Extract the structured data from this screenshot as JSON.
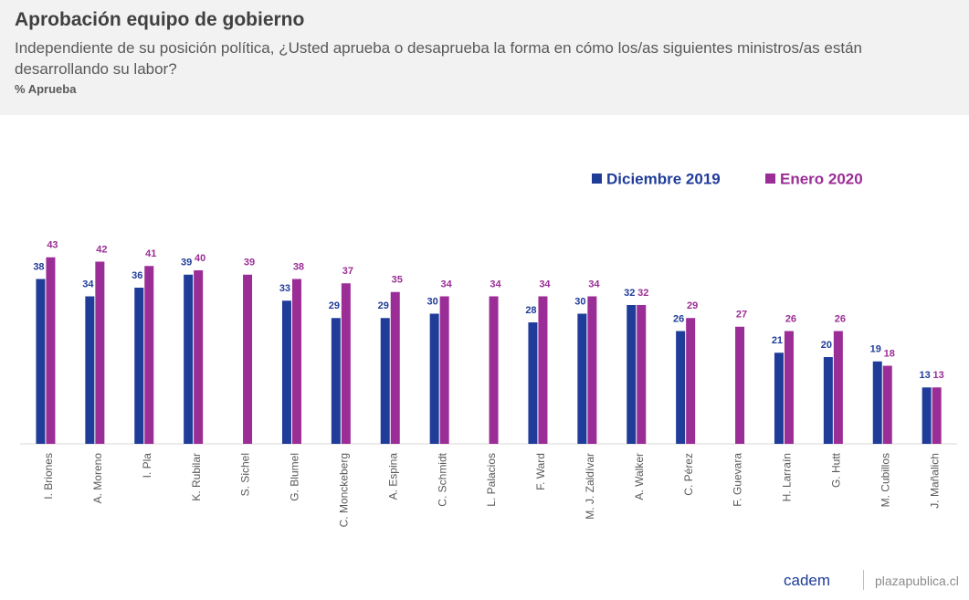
{
  "header": {
    "title": "Aprobación equipo de gobierno",
    "subtitle": "Independiente de su posición política, ¿Usted aprueba o desaprueba la forma en cómo los/as siguientes ministros/as están desarrollando su labor?",
    "unit": "% Aprueba"
  },
  "chart_data": {
    "type": "bar",
    "categories": [
      "I. Briones",
      "A. Moreno",
      "I. Pla",
      "K. Rubilar",
      "S. Sichel",
      "G. Blumel",
      "C. Monckeberg",
      "A. Espina",
      "C. Schmidt",
      "L. Palacios",
      "F. Ward",
      "M. J. Zaldívar",
      "A. Walker",
      "C. Pérez",
      "F. Guevara",
      "H. Larraín",
      "G. Hutt",
      "M. Cubillos",
      "J. Mañalich"
    ],
    "series": [
      {
        "name": "Diciembre 2019",
        "color": "#1f3c99",
        "values": [
          38,
          34,
          36,
          39,
          null,
          33,
          29,
          29,
          30,
          null,
          28,
          30,
          32,
          26,
          null,
          21,
          20,
          19,
          13
        ]
      },
      {
        "name": "Enero 2020",
        "color": "#9b2d96",
        "values": [
          43,
          42,
          41,
          40,
          39,
          38,
          37,
          35,
          34,
          34,
          34,
          34,
          32,
          29,
          27,
          26,
          26,
          18,
          13
        ]
      }
    ],
    "legend": "top-right"
  },
  "footer": {
    "brand": "cadem",
    "site": "plazapublica.cl"
  }
}
